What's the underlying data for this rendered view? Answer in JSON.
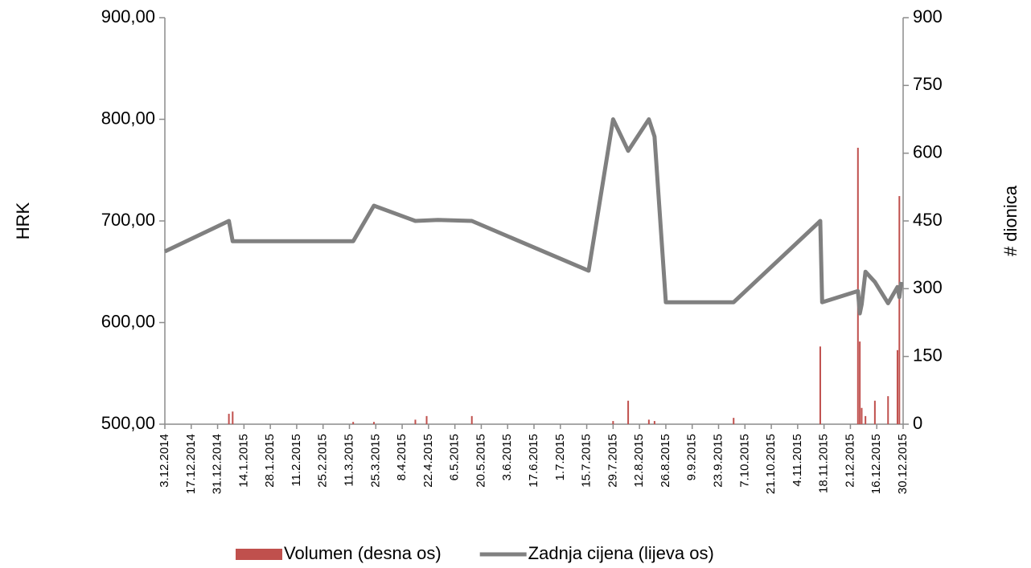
{
  "chart_data": {
    "type": "combo",
    "ylabel": "HRK",
    "y2label": "# dionica",
    "xlim": [
      "3.12.2014",
      "30.12.2015"
    ],
    "xticks": [
      "3.12.2014",
      "17.12.2014",
      "31.12.2014",
      "14.1.2015",
      "28.1.2015",
      "11.2.2015",
      "25.2.2015",
      "11.3.2015",
      "25.3.2015",
      "8.4.2015",
      "22.4.2015",
      "6.5.2015",
      "20.5.2015",
      "3.6.2015",
      "17.6.2015",
      "1.7.2015",
      "15.7.2015",
      "29.7.2015",
      "12.8.2015",
      "26.8.2015",
      "9.9.2015",
      "23.9.2015",
      "7.10.2015",
      "21.10.2015",
      "4.11.2015",
      "18.11.2015",
      "2.12.2015",
      "16.12.2015",
      "30.12.2015"
    ],
    "ylim": [
      500,
      900
    ],
    "yticks": [
      {
        "value": 500,
        "label": "500,00"
      },
      {
        "value": 600,
        "label": "600,00"
      },
      {
        "value": 700,
        "label": "700,00"
      },
      {
        "value": 800,
        "label": "800,00"
      },
      {
        "value": 900,
        "label": "900,00"
      }
    ],
    "y2lim": [
      0,
      900
    ],
    "y2ticks": [
      0,
      150,
      300,
      450,
      600,
      750,
      900
    ],
    "legend": "bottom",
    "series": [
      {
        "name": "Volumen (desna os)",
        "type": "bar",
        "axis": "y2",
        "color": "#c0504d",
        "x": [
          "6.1.2015",
          "8.1.2015",
          "13.3.2015",
          "24.3.2015",
          "15.4.2015",
          "21.4.2015",
          "15.5.2015",
          "29.7.2015",
          "6.8.2015",
          "17.8.2015",
          "20.8.2015",
          "1.10.2015",
          "16.11.2015",
          "6.12.2015",
          "7.12.2015",
          "8.12.2015",
          "10.12.2015",
          "15.12.2015",
          "22.12.2015",
          "27.12.2015",
          "28.12.2015"
        ],
        "values": [
          23,
          28,
          5,
          5,
          10,
          18,
          18,
          7,
          52,
          10,
          7,
          14,
          172,
          612,
          183,
          36,
          18,
          52,
          62,
          164,
          505
        ]
      },
      {
        "name": "Zadnja cijena (lijeva os)",
        "type": "line",
        "color": "#808080",
        "x": [
          "3.12.2014",
          "6.1.2015",
          "8.1.2015",
          "13.3.2015",
          "24.3.2015",
          "15.4.2015",
          "27.4.2015",
          "15.5.2015",
          "16.7.2015",
          "29.7.2015",
          "6.8.2015",
          "17.8.2015",
          "20.8.2015",
          "26.8.2015",
          "1.10.2015",
          "16.11.2015",
          "17.11.2015",
          "6.12.2015",
          "7.12.2015",
          "8.12.2015",
          "10.12.2015",
          "15.12.2015",
          "22.12.2015",
          "27.12.2015",
          "28.12.2015",
          "29.12.2015"
        ],
        "values": [
          670,
          700,
          680,
          680,
          715,
          700,
          701,
          700,
          651,
          800,
          769,
          800,
          783,
          620,
          620,
          700,
          620,
          631,
          609,
          618,
          650,
          640,
          619,
          635,
          625,
          640
        ]
      }
    ]
  }
}
